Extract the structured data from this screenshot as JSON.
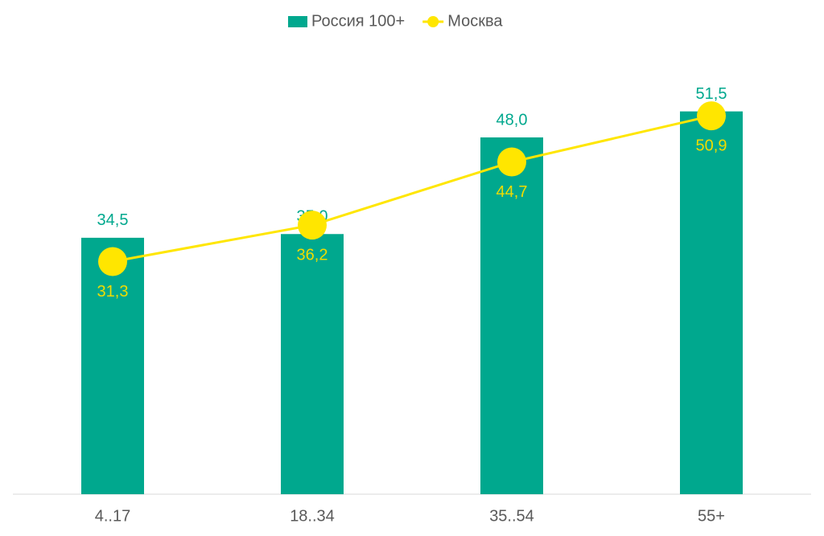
{
  "chart_data": {
    "type": "combo",
    "categories": [
      "4..17",
      "18..34",
      "35..54",
      "55+"
    ],
    "series": [
      {
        "name": "Россия 100+",
        "type": "bar",
        "color": "#00a88e",
        "values": [
          34.5,
          35.0,
          48.0,
          51.5
        ],
        "value_labels": [
          "34,5",
          "35,0",
          "48,0",
          "51,5"
        ]
      },
      {
        "name": "Москва",
        "type": "line",
        "color": "#ffe600",
        "values": [
          31.3,
          36.2,
          44.7,
          50.9
        ],
        "value_labels": [
          "31,3",
          "36,2",
          "44,7",
          "50,9"
        ]
      }
    ],
    "ylim": [
      0,
      60
    ],
    "legend": "top"
  }
}
